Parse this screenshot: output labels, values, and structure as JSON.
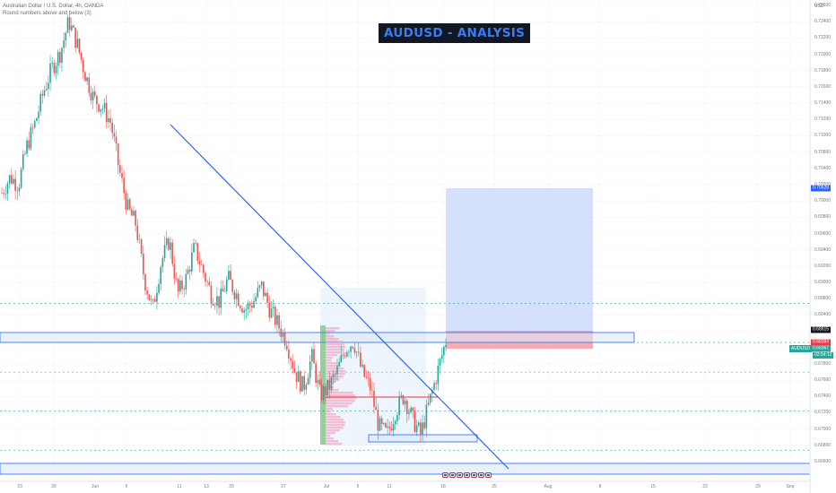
{
  "legend": {
    "symbol_line": "Australian Dollar / U.S. Dollar, 4h, OANDA",
    "indicator_line": "Round numbers above and below (3)"
  },
  "title_badge": "AUDUSD - ANALYSIS",
  "price_axis": {
    "unit_label": "USD",
    "ticks": [
      "0.72600",
      "0.72400",
      "0.72200",
      "0.72000",
      "0.71800",
      "0.71600",
      "0.71400",
      "0.71200",
      "0.71000",
      "0.70800",
      "0.70400",
      "0.70200",
      "0.70000",
      "0.69800",
      "0.69600",
      "0.69400",
      "0.69200",
      "0.69000",
      "0.68800",
      "0.68400",
      "0.68200",
      "0.68000",
      "0.67800",
      "0.67600",
      "0.67400",
      "0.67200",
      "0.67000",
      "0.66800",
      "0.66600"
    ]
  },
  "price_tags": {
    "target": {
      "label": "0.70528",
      "color": "#2962ff"
    },
    "resistance": {
      "label": "0.68615",
      "color": "#131722"
    },
    "stop": {
      "label": "0.68384",
      "color": "#f23645"
    },
    "current": {
      "label": "0.68367",
      "color": "#26a69a"
    }
  },
  "symbol_tag": "AUDUSD",
  "countdown": "02:54:12",
  "time_axis": {
    "ticks": [
      "23",
      "26",
      "Jun",
      "6",
      "11",
      "13",
      "20",
      "27",
      "Jul",
      "6",
      "11",
      "18",
      "25",
      "Aug",
      "8",
      "15",
      "22",
      "29",
      "Sep"
    ]
  },
  "events": {
    "flag_count": 7,
    "icon": "usd-flag-icon"
  },
  "colors": {
    "bull": "#26a69a",
    "bear": "#ef5350",
    "trendline": "#2962ff",
    "profit_zone": "#b9cdf6",
    "loss_zone": "#f6a2a9",
    "zone_border": "#2962ff",
    "dashed_level": "#26a69a"
  },
  "chart_data": {
    "type": "candlestick",
    "symbol": "Australian Dollar / U.S. Dollar",
    "timeframe": "4h",
    "exchange": "OANDA",
    "ylim": [
      0.666,
      0.727
    ],
    "trend_path": [
      0.703,
      0.705,
      0.704,
      0.709,
      0.712,
      0.716,
      0.719,
      0.721,
      0.725,
      0.722,
      0.718,
      0.715,
      0.714,
      0.712,
      0.706,
      0.701,
      0.699,
      0.692,
      0.688,
      0.694,
      0.697,
      0.69,
      0.692,
      0.696,
      0.693,
      0.69,
      0.689,
      0.692,
      0.69,
      0.688,
      0.689,
      0.691,
      0.688,
      0.686,
      0.684,
      0.68,
      0.678,
      0.682,
      0.677,
      0.678,
      0.68,
      0.683,
      0.684,
      0.68,
      0.678,
      0.673,
      0.672,
      0.675,
      0.677,
      0.674,
      0.672,
      0.676,
      0.68,
      0.684
    ],
    "levels": {
      "resistance_zone": [
        0.6855,
        0.6867
      ],
      "support_zone_bottom": [
        0.6655,
        0.6668
      ],
      "support_zone_mid": [
        0.6717,
        0.6724
      ],
      "dashed_levels": [
        0.6888,
        0.6838,
        0.68,
        0.675,
        0.67
      ]
    },
    "trade": {
      "entry": 0.68615,
      "target": 0.70528,
      "stop": 0.68384,
      "current": 0.68367
    }
  }
}
